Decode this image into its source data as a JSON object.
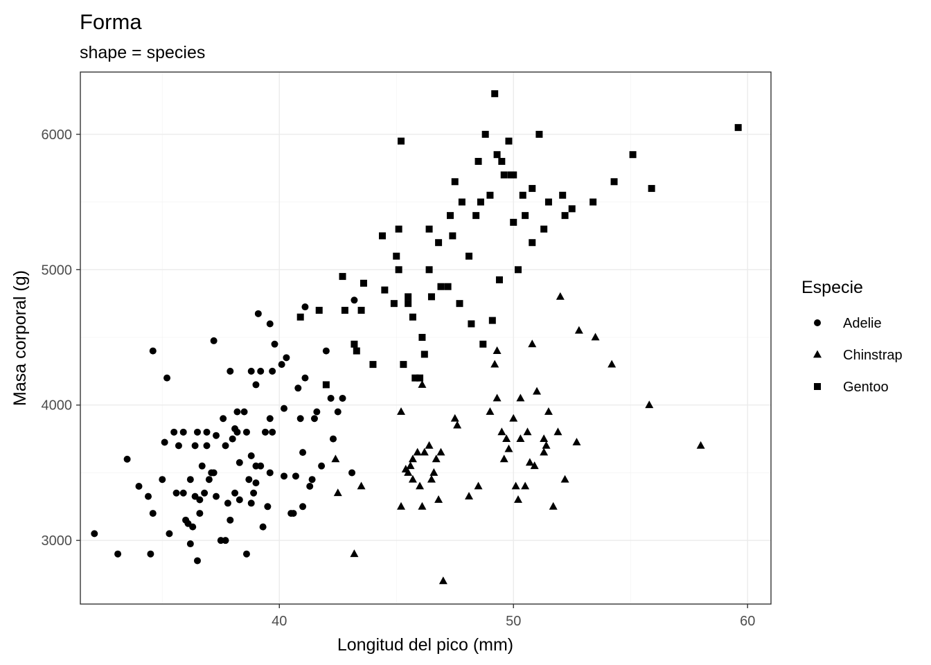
{
  "chart_data": {
    "type": "scatter",
    "title": "Forma",
    "subtitle": "shape = species",
    "xlabel": "Longitud del pico (mm)",
    "ylabel": "Masa corporal (g)",
    "xlim": [
      31.5,
      61
    ],
    "ylim": [
      2530,
      6460
    ],
    "xticks": [
      40,
      50,
      60
    ],
    "yticks": [
      3000,
      4000,
      5000,
      6000
    ],
    "xtick_labels": [
      "40",
      "50",
      "60"
    ],
    "ytick_labels": [
      "3000",
      "4000",
      "5000",
      "6000"
    ],
    "grid": true,
    "legend": {
      "title": "Especie",
      "position": "right"
    },
    "series": [
      {
        "name": "Adelie",
        "shape": "circle",
        "color": "#000000",
        "points": [
          [
            32.1,
            3050
          ],
          [
            33.1,
            2900
          ],
          [
            33.5,
            3600
          ],
          [
            34.0,
            3400
          ],
          [
            34.4,
            3325
          ],
          [
            34.5,
            2900
          ],
          [
            34.6,
            3200
          ],
          [
            34.6,
            4400
          ],
          [
            35.0,
            3450
          ],
          [
            35.1,
            3725
          ],
          [
            35.2,
            4200
          ],
          [
            35.3,
            3050
          ],
          [
            35.5,
            3800
          ],
          [
            35.6,
            3350
          ],
          [
            35.7,
            3700
          ],
          [
            35.9,
            3350
          ],
          [
            35.9,
            3800
          ],
          [
            36.0,
            3150
          ],
          [
            36.1,
            3125
          ],
          [
            36.2,
            3450
          ],
          [
            36.2,
            2975
          ],
          [
            36.3,
            3100
          ],
          [
            36.4,
            3700
          ],
          [
            36.4,
            3325
          ],
          [
            36.5,
            3800
          ],
          [
            36.5,
            2850
          ],
          [
            36.6,
            3200
          ],
          [
            36.6,
            3300
          ],
          [
            36.7,
            3550
          ],
          [
            36.8,
            3350
          ],
          [
            36.9,
            3700
          ],
          [
            36.9,
            3800
          ],
          [
            37.0,
            3450
          ],
          [
            37.1,
            3500
          ],
          [
            37.2,
            3500
          ],
          [
            37.3,
            3325
          ],
          [
            37.5,
            3000
          ],
          [
            37.6,
            3900
          ],
          [
            37.7,
            3700
          ],
          [
            37.7,
            3000
          ],
          [
            37.8,
            3275
          ],
          [
            37.9,
            3150
          ],
          [
            38.0,
            3750
          ],
          [
            38.1,
            3350
          ],
          [
            38.1,
            3825
          ],
          [
            38.2,
            3800
          ],
          [
            37.2,
            4475
          ],
          [
            37.9,
            4250
          ],
          [
            38.2,
            3950
          ],
          [
            38.6,
            2900
          ],
          [
            38.7,
            3450
          ],
          [
            38.3,
            3575
          ],
          [
            38.3,
            3300
          ],
          [
            38.5,
            3950
          ],
          [
            38.6,
            3800
          ],
          [
            38.8,
            3625
          ],
          [
            38.8,
            3275
          ],
          [
            38.9,
            3350
          ],
          [
            39.0,
            3550
          ],
          [
            39.0,
            3425
          ],
          [
            39.1,
            4675
          ],
          [
            39.2,
            4250
          ],
          [
            39.2,
            3550
          ],
          [
            39.3,
            3100
          ],
          [
            39.4,
            3800
          ],
          [
            39.5,
            3250
          ],
          [
            39.6,
            3500
          ],
          [
            39.6,
            3900
          ],
          [
            39.6,
            4600
          ],
          [
            39.7,
            3800
          ],
          [
            39.8,
            4450
          ],
          [
            39.7,
            4250
          ],
          [
            40.1,
            4300
          ],
          [
            40.2,
            3975
          ],
          [
            40.3,
            4350
          ],
          [
            40.5,
            3200
          ],
          [
            40.6,
            3200
          ],
          [
            40.7,
            3475
          ],
          [
            40.8,
            4125
          ],
          [
            40.9,
            3900
          ],
          [
            41.0,
            3650
          ],
          [
            41.1,
            4725
          ],
          [
            41.1,
            4200
          ],
          [
            41.3,
            3400
          ],
          [
            41.4,
            3450
          ],
          [
            41.5,
            3900
          ],
          [
            41.6,
            3950
          ],
          [
            41.8,
            3550
          ],
          [
            42.0,
            4400
          ],
          [
            42.3,
            3750
          ],
          [
            42.5,
            3950
          ],
          [
            42.2,
            4050
          ],
          [
            42.7,
            4050
          ],
          [
            43.2,
            4775
          ],
          [
            43.1,
            3500
          ],
          [
            39.0,
            4150
          ],
          [
            41.0,
            3250
          ],
          [
            38.8,
            4250
          ],
          [
            40.2,
            3475
          ],
          [
            37.3,
            3775
          ]
        ]
      },
      {
        "name": "Chinstrap",
        "shape": "triangle",
        "color": "#000000",
        "points": [
          [
            42.4,
            3600
          ],
          [
            42.5,
            3350
          ],
          [
            43.2,
            2900
          ],
          [
            43.5,
            3400
          ],
          [
            45.2,
            3250
          ],
          [
            45.2,
            3950
          ],
          [
            45.4,
            3525
          ],
          [
            45.5,
            3500
          ],
          [
            45.6,
            3550
          ],
          [
            45.7,
            3600
          ],
          [
            45.9,
            3650
          ],
          [
            46.0,
            3400
          ],
          [
            46.1,
            4150
          ],
          [
            46.1,
            3250
          ],
          [
            46.2,
            3650
          ],
          [
            46.4,
            3700
          ],
          [
            46.5,
            3450
          ],
          [
            46.6,
            3500
          ],
          [
            46.7,
            3600
          ],
          [
            46.8,
            3300
          ],
          [
            46.9,
            3650
          ],
          [
            47.0,
            2700
          ],
          [
            47.5,
            3900
          ],
          [
            47.6,
            3850
          ],
          [
            48.1,
            3325
          ],
          [
            48.5,
            3400
          ],
          [
            49.0,
            3950
          ],
          [
            49.2,
            4300
          ],
          [
            49.3,
            4400
          ],
          [
            49.5,
            3800
          ],
          [
            49.7,
            3750
          ],
          [
            49.8,
            3675
          ],
          [
            50.0,
            3900
          ],
          [
            50.1,
            3400
          ],
          [
            50.2,
            3300
          ],
          [
            50.3,
            3750
          ],
          [
            50.5,
            3400
          ],
          [
            50.6,
            3800
          ],
          [
            50.7,
            3575
          ],
          [
            50.8,
            4450
          ],
          [
            50.9,
            3550
          ],
          [
            51.0,
            4100
          ],
          [
            51.3,
            3650
          ],
          [
            51.4,
            3700
          ],
          [
            51.5,
            3950
          ],
          [
            51.7,
            3250
          ],
          [
            51.9,
            3800
          ],
          [
            52.0,
            4800
          ],
          [
            52.2,
            3450
          ],
          [
            52.7,
            3725
          ],
          [
            52.8,
            4550
          ],
          [
            53.5,
            4500
          ],
          [
            54.2,
            4300
          ],
          [
            55.8,
            4000
          ],
          [
            58.0,
            3700
          ],
          [
            45.7,
            3450
          ],
          [
            50.3,
            4050
          ],
          [
            49.6,
            3600
          ],
          [
            51.3,
            3750
          ],
          [
            49.3,
            4050
          ]
        ]
      },
      {
        "name": "Gentoo",
        "shape": "square",
        "color": "#000000",
        "points": [
          [
            40.9,
            4650
          ],
          [
            41.7,
            4700
          ],
          [
            42.0,
            4150
          ],
          [
            42.7,
            4950
          ],
          [
            42.8,
            4700
          ],
          [
            43.2,
            4450
          ],
          [
            43.3,
            4400
          ],
          [
            43.5,
            4700
          ],
          [
            43.6,
            4900
          ],
          [
            44.0,
            4300
          ],
          [
            44.4,
            5250
          ],
          [
            44.5,
            4850
          ],
          [
            44.9,
            4750
          ],
          [
            45.0,
            5100
          ],
          [
            45.1,
            5000
          ],
          [
            45.2,
            5950
          ],
          [
            45.3,
            4300
          ],
          [
            45.5,
            4800
          ],
          [
            45.7,
            4650
          ],
          [
            45.8,
            4200
          ],
          [
            46.1,
            4500
          ],
          [
            46.2,
            4375
          ],
          [
            46.4,
            5000
          ],
          [
            46.5,
            4800
          ],
          [
            46.8,
            5200
          ],
          [
            46.9,
            4875
          ],
          [
            47.2,
            4875
          ],
          [
            47.3,
            5400
          ],
          [
            47.5,
            5650
          ],
          [
            47.7,
            4750
          ],
          [
            48.1,
            5100
          ],
          [
            48.2,
            4600
          ],
          [
            48.4,
            5400
          ],
          [
            48.5,
            5800
          ],
          [
            48.7,
            4450
          ],
          [
            48.8,
            6000
          ],
          [
            49.0,
            5550
          ],
          [
            49.1,
            4625
          ],
          [
            49.2,
            6300
          ],
          [
            49.3,
            5850
          ],
          [
            49.4,
            4925
          ],
          [
            49.5,
            5800
          ],
          [
            49.6,
            5700
          ],
          [
            49.8,
            5950
          ],
          [
            50.0,
            5350
          ],
          [
            50.2,
            5000
          ],
          [
            50.4,
            5550
          ],
          [
            50.5,
            5400
          ],
          [
            50.8,
            5600
          ],
          [
            51.1,
            6000
          ],
          [
            51.3,
            5300
          ],
          [
            51.5,
            5500
          ],
          [
            52.1,
            5550
          ],
          [
            52.2,
            5400
          ],
          [
            52.5,
            5450
          ],
          [
            53.4,
            5500
          ],
          [
            54.3,
            5650
          ],
          [
            55.1,
            5850
          ],
          [
            55.9,
            5600
          ],
          [
            59.6,
            6050
          ],
          [
            45.1,
            5300
          ],
          [
            46.4,
            5300
          ],
          [
            47.4,
            5250
          ],
          [
            48.6,
            5500
          ],
          [
            49.9,
            5700
          ],
          [
            50.0,
            5700
          ],
          [
            46.0,
            4200
          ],
          [
            45.5,
            4750
          ],
          [
            47.8,
            5500
          ],
          [
            50.8,
            5200
          ]
        ]
      }
    ]
  }
}
